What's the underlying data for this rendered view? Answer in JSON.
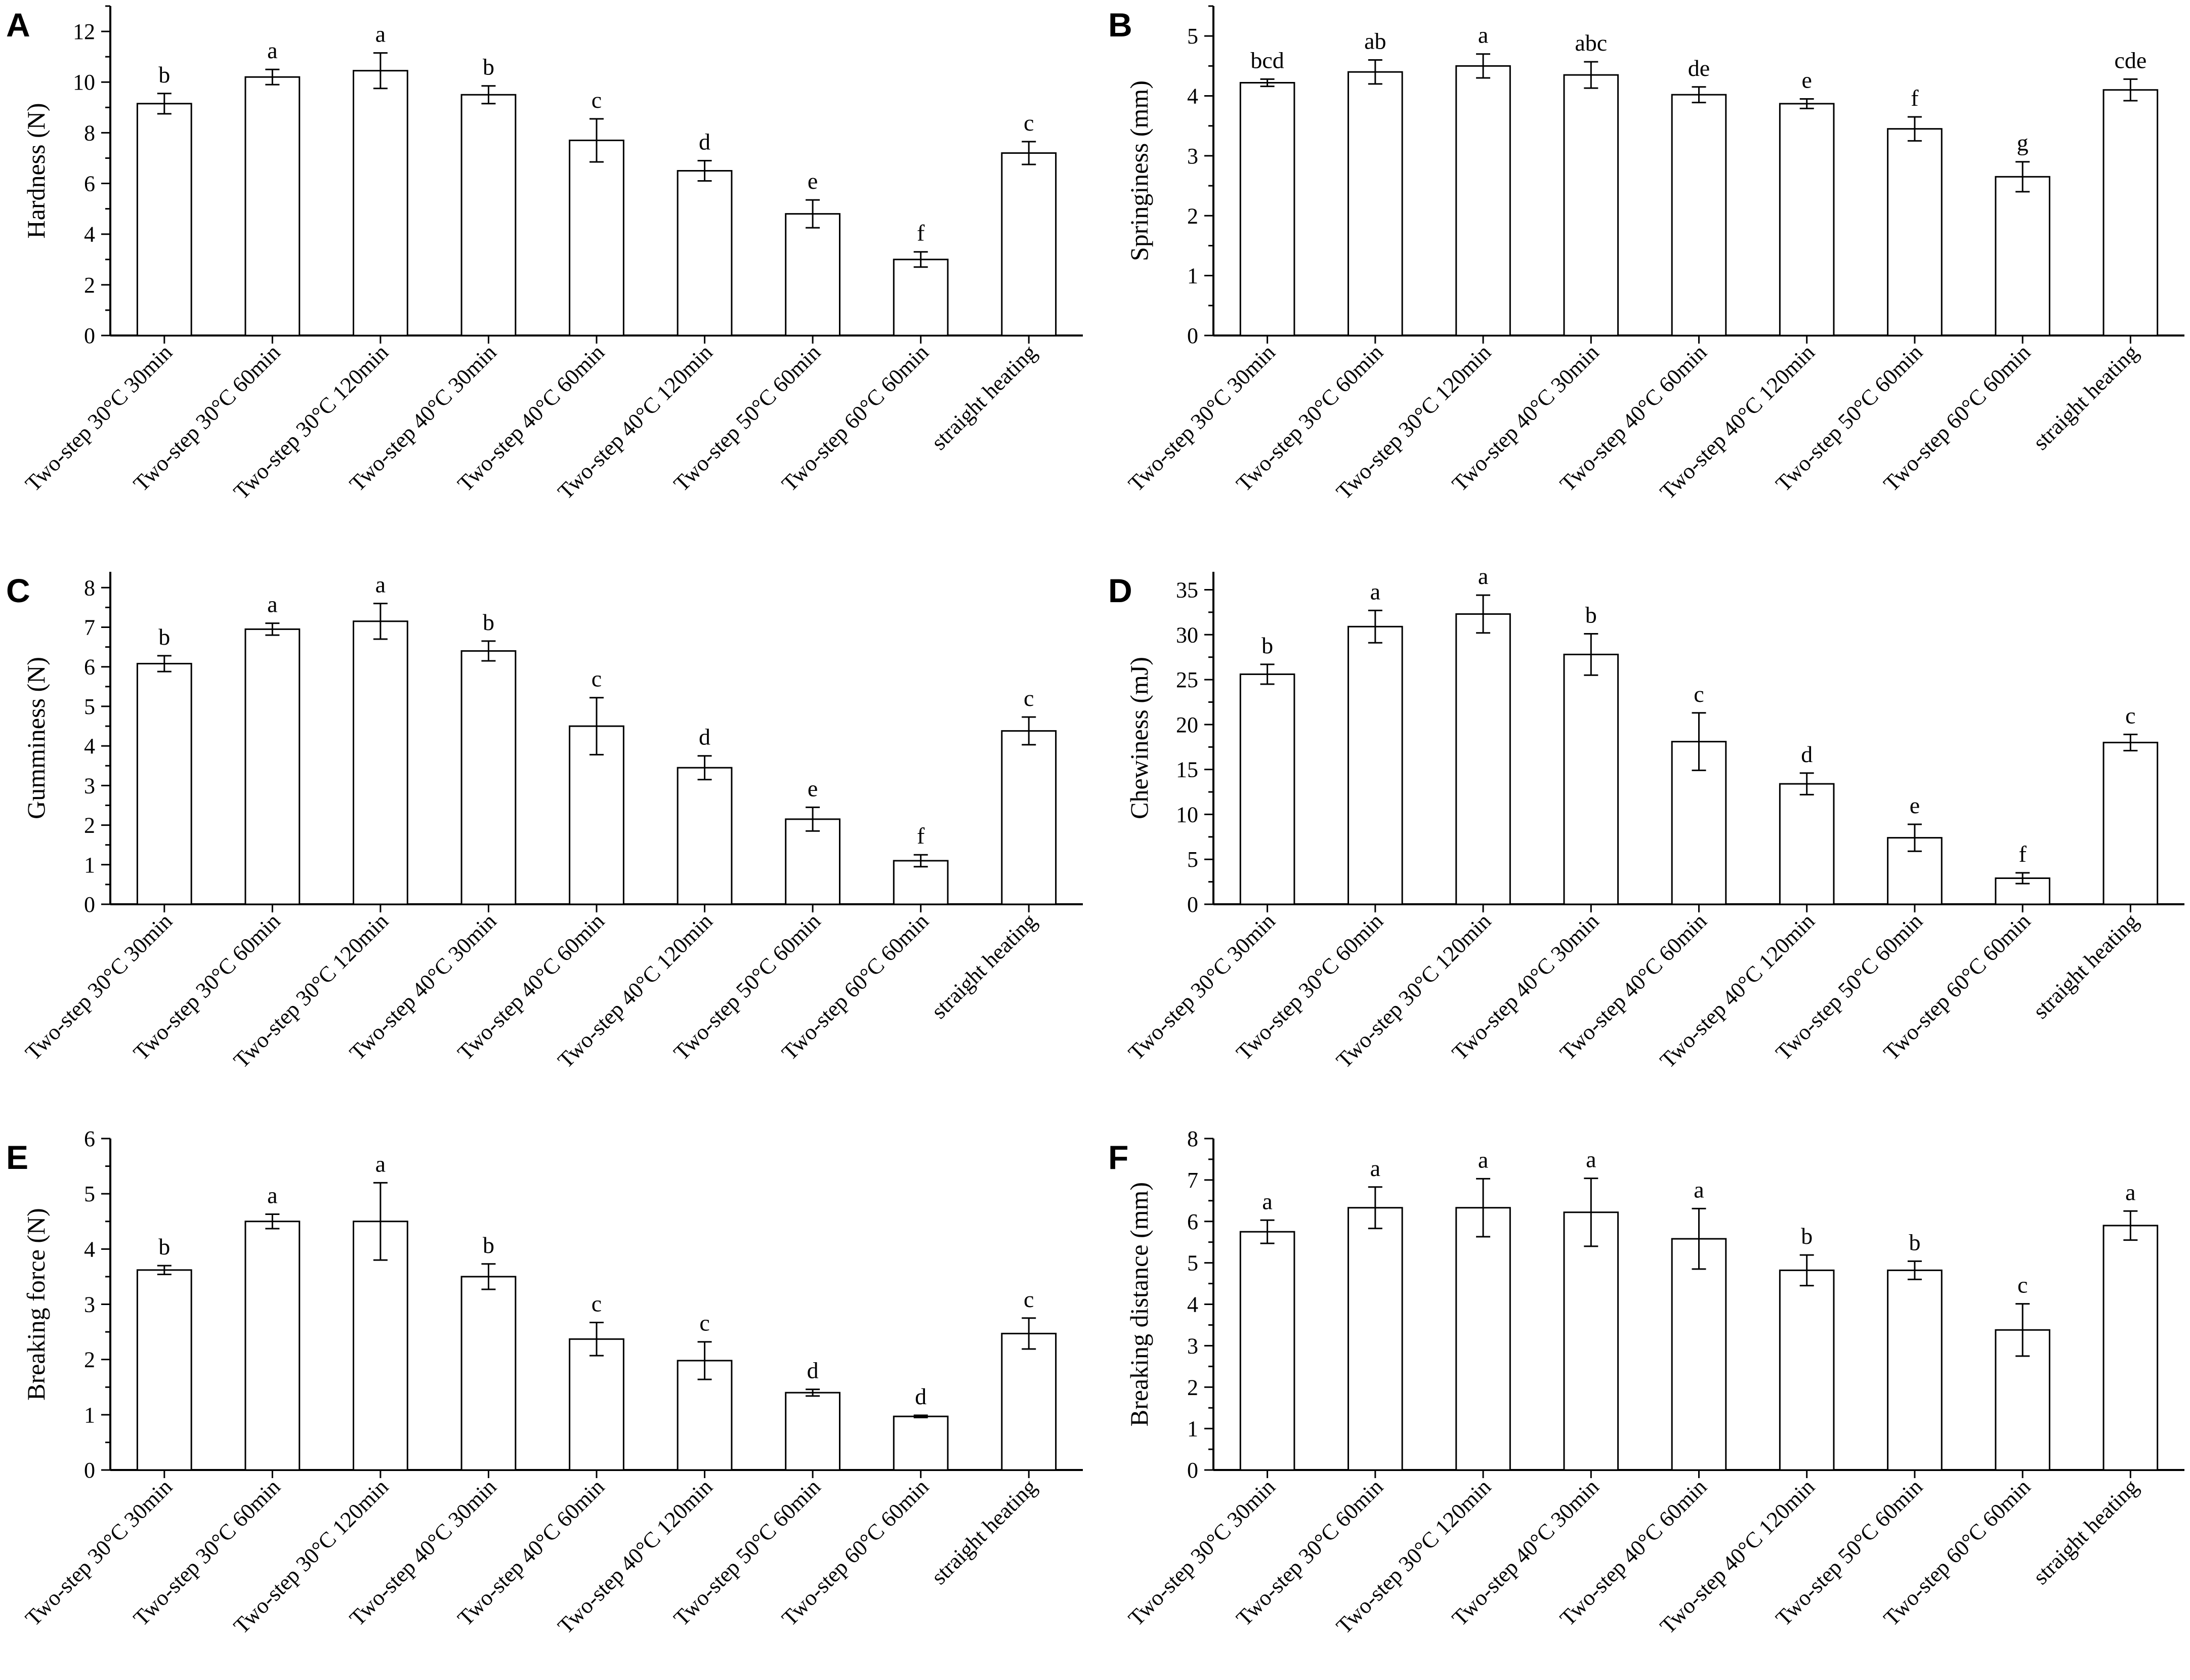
{
  "figure": {
    "chart_count": 6,
    "colors": {
      "bar_fill": "#ffffff",
      "bar_stroke": "#000000",
      "axis": "#000000",
      "text": "#000000"
    }
  },
  "chart_data": [
    {
      "panel": "A",
      "type": "bar",
      "title": "",
      "xlabel": "",
      "ylabel": "Hardness (N)",
      "ylim": [
        0,
        13
      ],
      "yticks": [
        0,
        2,
        4,
        6,
        8,
        10,
        12
      ],
      "categories": [
        "Two-step 30°C 30min",
        "Two-step 30°C 60min",
        "Two-step 30°C 120min",
        "Two-step 40°C 30min",
        "Two-step 40°C 60min",
        "Two-step 40°C 120min",
        "Two-step 50°C 60min",
        "Two-step 60°C 60min",
        "straight heating"
      ],
      "values": [
        9.15,
        10.2,
        10.45,
        9.5,
        7.7,
        6.5,
        4.8,
        3.0,
        7.2
      ],
      "errors": [
        0.4,
        0.3,
        0.7,
        0.35,
        0.85,
        0.4,
        0.55,
        0.3,
        0.45
      ],
      "letters": [
        "b",
        "a",
        "a",
        "b",
        "c",
        "d",
        "e",
        "f",
        "c"
      ]
    },
    {
      "panel": "B",
      "type": "bar",
      "title": "",
      "xlabel": "",
      "ylabel": "Springiness (mm)",
      "ylim": [
        0,
        5.5
      ],
      "yticks": [
        0,
        1,
        2,
        3,
        4,
        5
      ],
      "categories": [
        "Two-step 30°C 30min",
        "Two-step 30°C 60min",
        "Two-step 30°C 120min",
        "Two-step 40°C 30min",
        "Two-step 40°C 60min",
        "Two-step 40°C 120min",
        "Two-step 50°C 60min",
        "Two-step 60°C 60min",
        "straight heating"
      ],
      "values": [
        4.22,
        4.4,
        4.5,
        4.35,
        4.02,
        3.87,
        3.45,
        2.65,
        4.1
      ],
      "errors": [
        0.06,
        0.2,
        0.2,
        0.22,
        0.13,
        0.08,
        0.2,
        0.25,
        0.18
      ],
      "letters": [
        "bcd",
        "ab",
        "a",
        "abc",
        "de",
        "e",
        "f",
        "g",
        "cde"
      ]
    },
    {
      "panel": "C",
      "type": "bar",
      "title": "",
      "xlabel": "",
      "ylabel": "Gumminess (N)",
      "ylim": [
        0,
        8.4
      ],
      "yticks": [
        0,
        1,
        2,
        3,
        4,
        5,
        6,
        7,
        8
      ],
      "categories": [
        "Two-step 30°C 30min",
        "Two-step 30°C 60min",
        "Two-step 30°C 120min",
        "Two-step 40°C 30min",
        "Two-step 40°C 60min",
        "Two-step 40°C 120min",
        "Two-step 50°C 60min",
        "Two-step 60°C 60min",
        "straight heating"
      ],
      "values": [
        6.08,
        6.95,
        7.15,
        6.4,
        4.5,
        3.45,
        2.15,
        1.1,
        4.38
      ],
      "errors": [
        0.2,
        0.15,
        0.45,
        0.25,
        0.72,
        0.3,
        0.3,
        0.15,
        0.35
      ],
      "letters": [
        "b",
        "a",
        "a",
        "b",
        "c",
        "d",
        "e",
        "f",
        "c"
      ]
    },
    {
      "panel": "D",
      "type": "bar",
      "title": "",
      "xlabel": "",
      "ylabel": "Chewiness (mJ)",
      "ylim": [
        0,
        37
      ],
      "yticks": [
        0,
        5,
        10,
        15,
        20,
        25,
        30,
        35
      ],
      "categories": [
        "Two-step 30°C 30min",
        "Two-step 30°C 60min",
        "Two-step 30°C 120min",
        "Two-step 40°C 30min",
        "Two-step 40°C 60min",
        "Two-step 40°C 120min",
        "Two-step 50°C 60min",
        "Two-step 60°C 60min",
        "straight heating"
      ],
      "values": [
        25.6,
        30.9,
        32.3,
        27.8,
        18.1,
        13.4,
        7.4,
        2.9,
        18.0
      ],
      "errors": [
        1.1,
        1.8,
        2.1,
        2.3,
        3.2,
        1.2,
        1.5,
        0.6,
        0.9
      ],
      "letters": [
        "b",
        "a",
        "a",
        "b",
        "c",
        "d",
        "e",
        "f",
        "c"
      ]
    },
    {
      "panel": "E",
      "type": "bar",
      "title": "",
      "xlabel": "",
      "ylabel": "Breaking force (N)",
      "ylim": [
        0,
        6
      ],
      "yticks": [
        0,
        1,
        2,
        3,
        4,
        5,
        6
      ],
      "categories": [
        "Two-step 30°C 30min",
        "Two-step 30°C 60min",
        "Two-step 30°C 120min",
        "Two-step 40°C 30min",
        "Two-step 40°C 60min",
        "Two-step 40°C 120min",
        "Two-step 50°C 60min",
        "Two-step 60°C 60min",
        "straight heating"
      ],
      "values": [
        3.62,
        4.5,
        4.5,
        3.5,
        2.37,
        1.98,
        1.4,
        0.97,
        2.47
      ],
      "errors": [
        0.08,
        0.13,
        0.7,
        0.23,
        0.3,
        0.34,
        0.06,
        0.02,
        0.28
      ],
      "letters": [
        "b",
        "a",
        "a",
        "b",
        "c",
        "c",
        "d",
        "d",
        "c"
      ]
    },
    {
      "panel": "F",
      "type": "bar",
      "title": "",
      "xlabel": "",
      "ylabel": "Breaking distance (mm)",
      "ylim": [
        0,
        8
      ],
      "yticks": [
        0,
        1,
        2,
        3,
        4,
        5,
        6,
        7,
        8
      ],
      "categories": [
        "Two-step 30°C 30min",
        "Two-step 30°C 60min",
        "Two-step 30°C 120min",
        "Two-step 40°C 30min",
        "Two-step 40°C 60min",
        "Two-step 40°C 120min",
        "Two-step 50°C 60min",
        "Two-step 60°C 60min",
        "straight heating"
      ],
      "values": [
        5.75,
        6.33,
        6.33,
        6.22,
        5.58,
        4.82,
        4.82,
        3.38,
        5.9
      ],
      "errors": [
        0.28,
        0.5,
        0.7,
        0.82,
        0.73,
        0.37,
        0.22,
        0.63,
        0.35
      ],
      "letters": [
        "a",
        "a",
        "a",
        "a",
        "a",
        "b",
        "b",
        "c",
        "a"
      ]
    }
  ]
}
